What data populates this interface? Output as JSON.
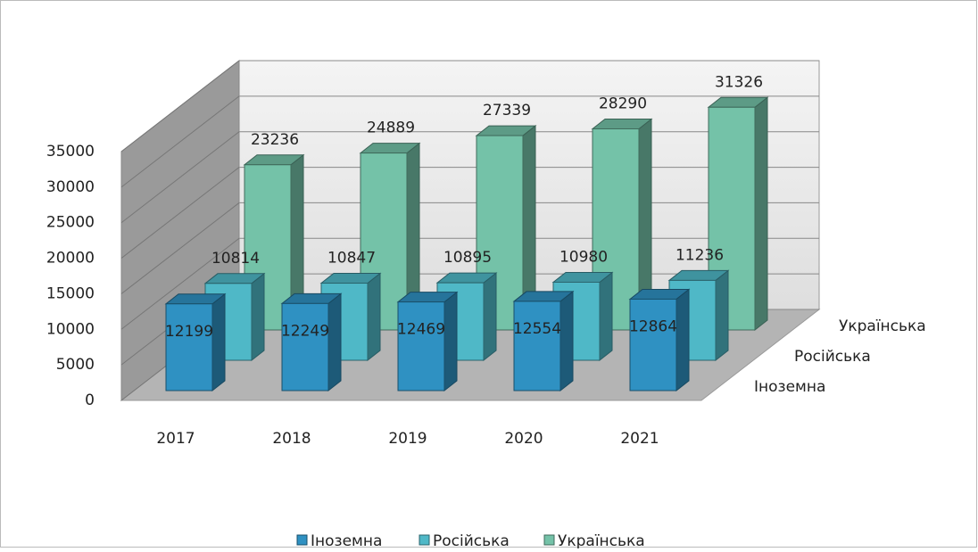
{
  "chart_data": {
    "type": "bar3d",
    "categories": [
      "2017",
      "2018",
      "2019",
      "2020",
      "2021"
    ],
    "series": [
      {
        "name": "Іноземна",
        "color": "#2f91c2",
        "values": [
          12199,
          12249,
          12469,
          12554,
          12864
        ]
      },
      {
        "name": "Російська",
        "color": "#4fb8c7",
        "values": [
          10814,
          10847,
          10895,
          10980,
          11236
        ]
      },
      {
        "name": "Українська",
        "color": "#74c2a8",
        "values": [
          23236,
          24889,
          27339,
          28290,
          31326
        ]
      }
    ],
    "ylim": [
      0,
      35000
    ],
    "yticks": [
      0,
      5000,
      10000,
      15000,
      20000,
      25000,
      30000,
      35000
    ],
    "grid": true,
    "legend": "bottom"
  }
}
